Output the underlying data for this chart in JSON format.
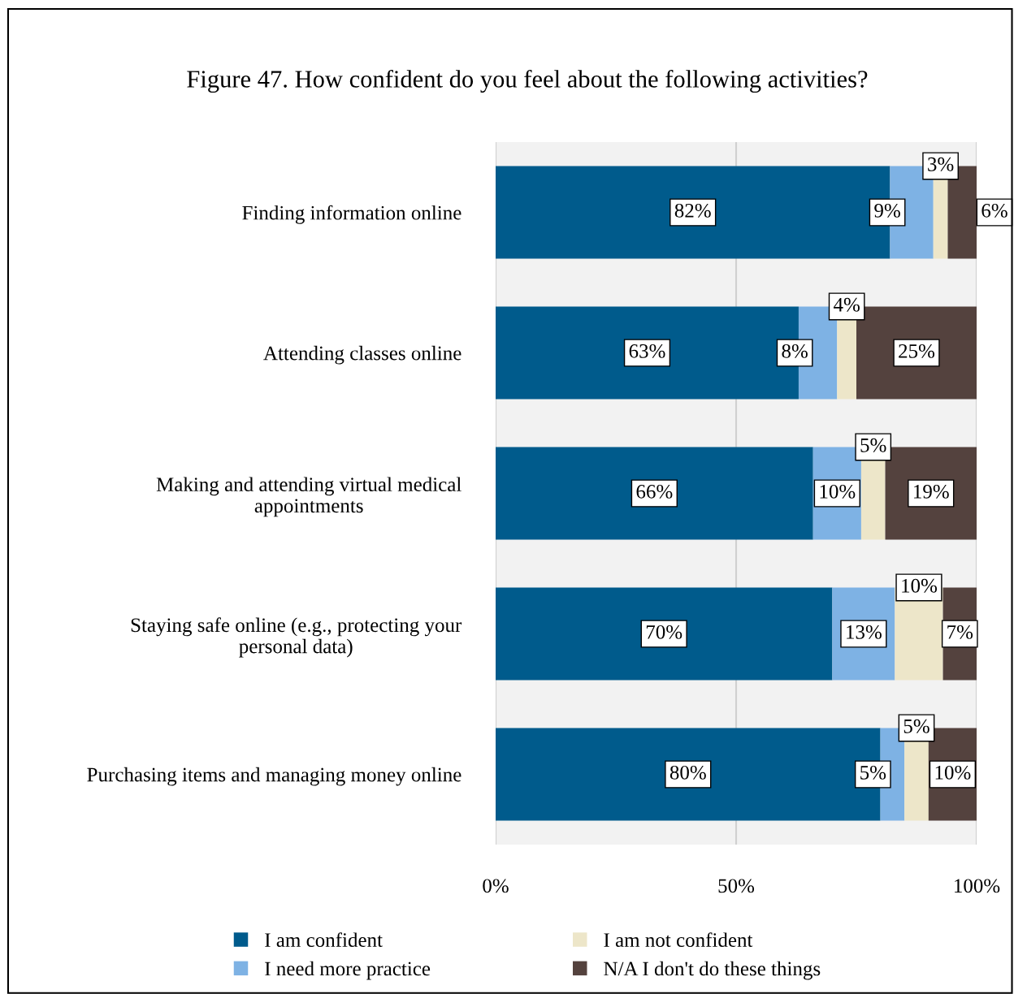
{
  "chart_data": {
    "type": "bar",
    "orientation": "horizontal",
    "stacked": true,
    "title": "Figure 47. How confident do you feel about the following activities?",
    "categories": [
      "Finding information online",
      "Attending classes online",
      "Making and attending virtual medical appointments",
      "Staying safe online (e.g., protecting your personal data)",
      "Purchasing items and managing money online"
    ],
    "series": [
      {
        "name": "I am confident",
        "color": "#005b8c",
        "values": [
          82,
          63,
          66,
          70,
          80
        ],
        "value_labels": [
          "82%",
          "63%",
          "66%",
          "70%",
          "80%"
        ]
      },
      {
        "name": "I need more practice",
        "color": "#7eb2e4",
        "values": [
          9,
          8,
          10,
          13,
          5
        ],
        "value_labels": [
          "9%",
          "8%",
          "10%",
          "13%",
          "5%"
        ]
      },
      {
        "name": "I am not confident",
        "color": "#ede6c9",
        "values": [
          3,
          4,
          5,
          10,
          5
        ],
        "value_labels": [
          "3%",
          "4%",
          "5%",
          "10%",
          "5%"
        ]
      },
      {
        "name": "N/A I don't do these things",
        "color": "#54423e",
        "values": [
          6,
          25,
          19,
          7,
          10
        ],
        "value_labels": [
          "6%",
          "25%",
          "19%",
          "7%",
          "10%"
        ]
      }
    ],
    "xlim": [
      0,
      100
    ],
    "xticks": [
      {
        "value": 0,
        "label": "0%"
      },
      {
        "value": 50,
        "label": "50%"
      },
      {
        "value": 100,
        "label": "100%"
      }
    ],
    "grid": "x",
    "legend": "bottom"
  }
}
